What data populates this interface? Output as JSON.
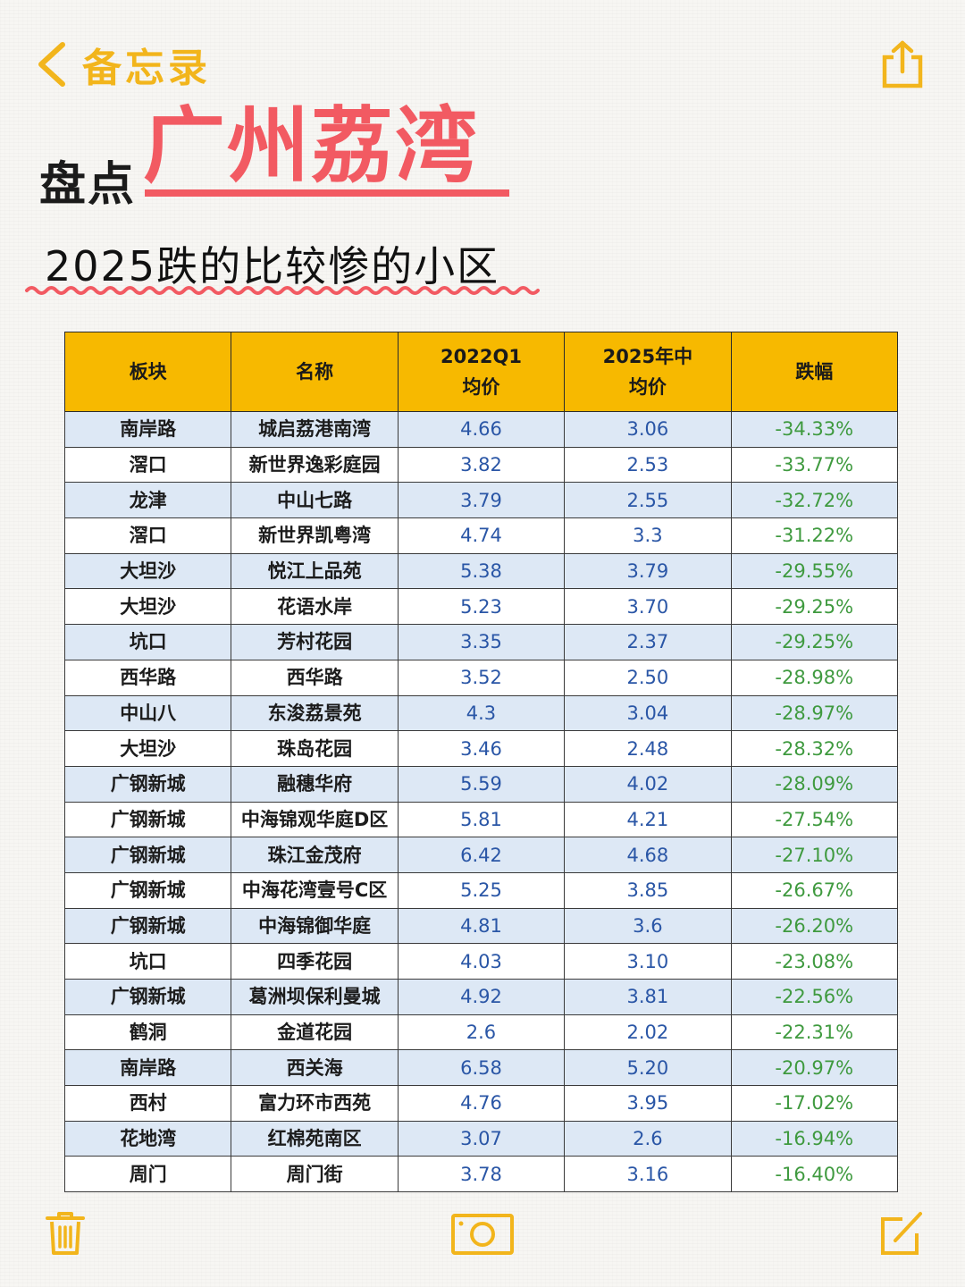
{
  "nav": {
    "back_label": "备忘录",
    "accent_color": "#f2b51c",
    "back_icon": "chevron-left-icon",
    "share_icon": "share-icon"
  },
  "title": {
    "prefix": "盘点",
    "highlight": "广州荔湾",
    "subtitle": "2025跌的比较惨的小区",
    "highlight_color": "#f25a62"
  },
  "table": {
    "headers": [
      {
        "line1": "板块",
        "line2": ""
      },
      {
        "line1": "名称",
        "line2": ""
      },
      {
        "line1": "2022Q1",
        "line2": "均价"
      },
      {
        "line1": "2025年中",
        "line2": "均价"
      },
      {
        "line1": "跌幅",
        "line2": ""
      }
    ],
    "header_color": "#f7b900",
    "rows": [
      {
        "sector": "南岸路",
        "name": "城启荔港南湾",
        "price_2022": "4.66",
        "price_2025": "3.06",
        "change": "-34.33%"
      },
      {
        "sector": "滘口",
        "name": "新世界逸彩庭园",
        "price_2022": "3.82",
        "price_2025": "2.53",
        "change": "-33.77%"
      },
      {
        "sector": "龙津",
        "name": "中山七路",
        "price_2022": "3.79",
        "price_2025": "2.55",
        "change": "-32.72%"
      },
      {
        "sector": "滘口",
        "name": "新世界凯粤湾",
        "price_2022": "4.74",
        "price_2025": "3.3",
        "change": "-31.22%"
      },
      {
        "sector": "大坦沙",
        "name": "悦江上品苑",
        "price_2022": "5.38",
        "price_2025": "3.79",
        "change": "-29.55%"
      },
      {
        "sector": "大坦沙",
        "name": "花语水岸",
        "price_2022": "5.23",
        "price_2025": "3.70",
        "change": "-29.25%"
      },
      {
        "sector": "坑口",
        "name": "芳村花园",
        "price_2022": "3.35",
        "price_2025": "2.37",
        "change": "-29.25%"
      },
      {
        "sector": "西华路",
        "name": "西华路",
        "price_2022": "3.52",
        "price_2025": "2.50",
        "change": "-28.98%"
      },
      {
        "sector": "中山八",
        "name": "东浚荔景苑",
        "price_2022": "4.3",
        "price_2025": "3.04",
        "change": "-28.97%"
      },
      {
        "sector": "大坦沙",
        "name": "珠岛花园",
        "price_2022": "3.46",
        "price_2025": "2.48",
        "change": "-28.32%"
      },
      {
        "sector": "广钢新城",
        "name": "融穗华府",
        "price_2022": "5.59",
        "price_2025": "4.02",
        "change": "-28.09%"
      },
      {
        "sector": "广钢新城",
        "name": "中海锦观华庭D区",
        "price_2022": "5.81",
        "price_2025": "4.21",
        "change": "-27.54%"
      },
      {
        "sector": "广钢新城",
        "name": "珠江金茂府",
        "price_2022": "6.42",
        "price_2025": "4.68",
        "change": "-27.10%"
      },
      {
        "sector": "广钢新城",
        "name": "中海花湾壹号C区",
        "price_2022": "5.25",
        "price_2025": "3.85",
        "change": "-26.67%"
      },
      {
        "sector": "广钢新城",
        "name": "中海锦御华庭",
        "price_2022": "4.81",
        "price_2025": "3.6",
        "change": "-26.20%"
      },
      {
        "sector": "坑口",
        "name": "四季花园",
        "price_2022": "4.03",
        "price_2025": "3.10",
        "change": "-23.08%"
      },
      {
        "sector": "广钢新城",
        "name": "葛洲坝保利曼城",
        "price_2022": "4.92",
        "price_2025": "3.81",
        "change": "-22.56%"
      },
      {
        "sector": "鹤洞",
        "name": "金道花园",
        "price_2022": "2.6",
        "price_2025": "2.02",
        "change": "-22.31%"
      },
      {
        "sector": "南岸路",
        "name": "西关海",
        "price_2022": "6.58",
        "price_2025": "5.20",
        "change": "-20.97%"
      },
      {
        "sector": "西村",
        "name": "富力环市西苑",
        "price_2022": "4.76",
        "price_2025": "3.95",
        "change": "-17.02%"
      },
      {
        "sector": "花地湾",
        "name": "红棉苑南区",
        "price_2022": "3.07",
        "price_2025": "2.6",
        "change": "-16.94%"
      },
      {
        "sector": "周门",
        "name": "周门街",
        "price_2022": "3.78",
        "price_2025": "3.16",
        "change": "-16.40%"
      }
    ]
  },
  "toolbar": {
    "trash_icon": "trash-icon",
    "camera_icon": "camera-icon",
    "compose_icon": "compose-icon"
  }
}
